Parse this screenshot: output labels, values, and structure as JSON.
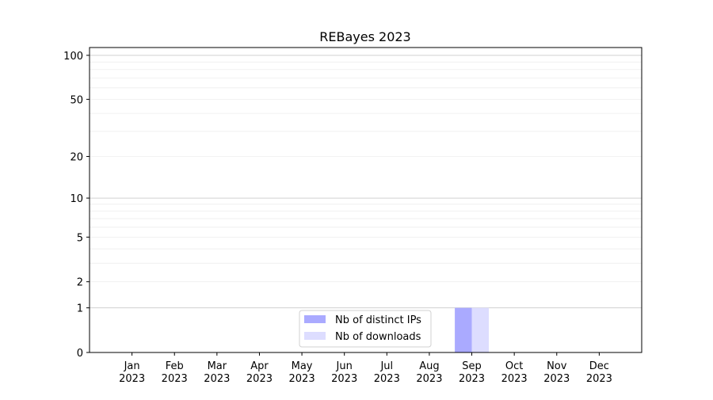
{
  "chart_data": {
    "type": "bar",
    "title": "REBayes 2023",
    "xlabel": "",
    "ylabel": "",
    "y_scale": "log10(1+y)",
    "ylim": [
      0,
      113
    ],
    "y_ticks": [
      0,
      1,
      2,
      5,
      10,
      20,
      50,
      100
    ],
    "grid": "horizontal, major at 1/10/100, minor in between",
    "categories": [
      "Jan\n2023",
      "Feb\n2023",
      "Mar\n2023",
      "Apr\n2023",
      "May\n2023",
      "Jun\n2023",
      "Jul\n2023",
      "Aug\n2023",
      "Sep\n2023",
      "Oct\n2023",
      "Nov\n2023",
      "Dec\n2023"
    ],
    "series": [
      {
        "name": "Nb of distinct IPs",
        "color": "#aaaaff",
        "values": [
          0,
          0,
          0,
          0,
          0,
          0,
          0,
          0,
          1,
          0,
          0,
          0
        ]
      },
      {
        "name": "Nb of downloads",
        "color": "#ddddff",
        "values": [
          0,
          0,
          0,
          0,
          0,
          0,
          0,
          0,
          1,
          0,
          0,
          0
        ]
      }
    ],
    "legend_placement": "bottom-center"
  }
}
